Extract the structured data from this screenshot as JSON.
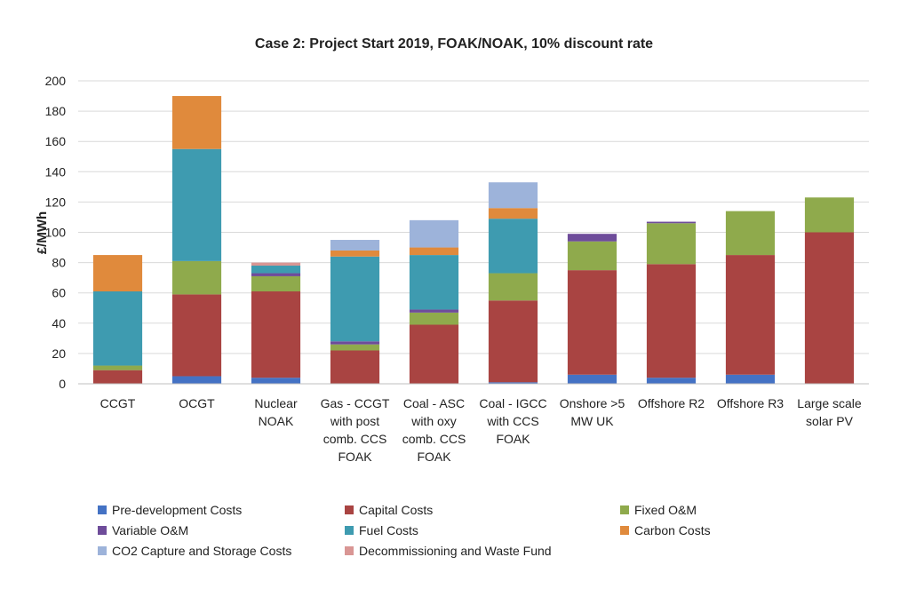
{
  "chart_data": {
    "type": "bar",
    "stacked": true,
    "title": "Case 2: Project Start 2019, FOAK/NOAK, 10% discount rate",
    "ylabel": "£/MWh",
    "ylim": [
      0,
      200
    ],
    "yticks": [
      "0",
      "20",
      "40",
      "60",
      "80",
      "100",
      "120",
      "140",
      "160",
      "180",
      "200"
    ],
    "grid": true,
    "legend_position": "bottom",
    "categories": [
      [
        "CCGT"
      ],
      [
        "OCGT"
      ],
      [
        "Nuclear",
        "NOAK"
      ],
      [
        "Gas - CCGT",
        "with post",
        "comb. CCS",
        "FOAK"
      ],
      [
        "Coal - ASC",
        "with oxy",
        "comb. CCS",
        "FOAK"
      ],
      [
        "Coal - IGCC",
        "with CCS",
        "FOAK"
      ],
      [
        "Onshore >5",
        "MW UK"
      ],
      [
        "Offshore R2"
      ],
      [
        "Offshore R3"
      ],
      [
        "Large scale",
        "solar PV"
      ]
    ],
    "series": [
      {
        "name": "Pre-development Costs",
        "color": "#4472C4",
        "values": [
          0,
          5,
          4,
          0,
          0,
          1,
          6,
          4,
          6,
          0
        ]
      },
      {
        "name": "Capital Costs",
        "color": "#A94442",
        "values": [
          9,
          54,
          57,
          22,
          39,
          54,
          69,
          75,
          79,
          100
        ]
      },
      {
        "name": "Fixed O&M",
        "color": "#8FAA4C",
        "values": [
          3,
          22,
          10,
          4,
          8,
          18,
          19,
          27,
          29,
          23
        ]
      },
      {
        "name": "Variable O&M",
        "color": "#6E4C9A",
        "values": [
          0,
          0,
          2,
          2,
          2,
          0,
          5,
          1,
          0,
          0
        ]
      },
      {
        "name": "Fuel Costs",
        "color": "#3E9BB0",
        "values": [
          49,
          74,
          5,
          56,
          36,
          36,
          0,
          0,
          0,
          0
        ]
      },
      {
        "name": "Carbon Costs",
        "color": "#E08A3C",
        "values": [
          24,
          35,
          0,
          4,
          5,
          7,
          0,
          0,
          0,
          0
        ]
      },
      {
        "name": "CO2 Capture and Storage Costs",
        "color": "#9DB3DA",
        "values": [
          0,
          0,
          0,
          7,
          18,
          17,
          0,
          0,
          0,
          0
        ]
      },
      {
        "name": "Decommissioning and Waste Fund",
        "color": "#D99694",
        "values": [
          0,
          0,
          2,
          0,
          0,
          0,
          0,
          0,
          0,
          0
        ]
      }
    ]
  }
}
